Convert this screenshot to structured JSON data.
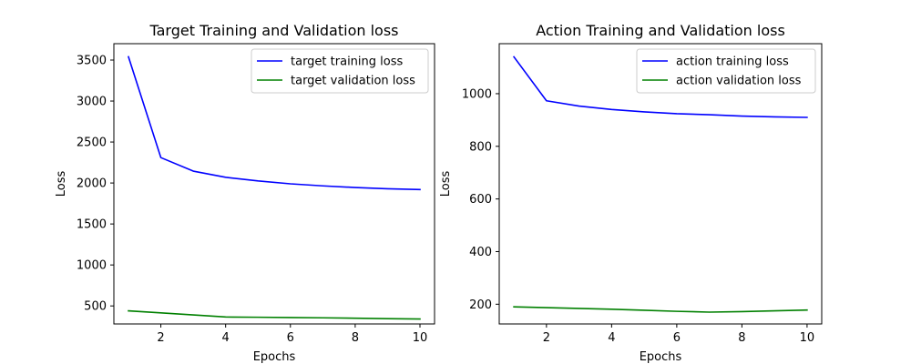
{
  "chart_data": [
    {
      "type": "line",
      "title": "Target Training and Validation loss",
      "xlabel": "Epochs",
      "ylabel": "Loss",
      "xlim": [
        0.55,
        10.45
      ],
      "ylim": [
        280,
        3700
      ],
      "xticks": [
        2,
        4,
        6,
        8,
        10
      ],
      "xtick_labels": [
        "2",
        "4",
        "6",
        "8",
        "10"
      ],
      "yticks": [
        500,
        1000,
        1500,
        2000,
        2500,
        3000,
        3500
      ],
      "ytick_labels": [
        "500",
        "1000",
        "1500",
        "2000",
        "2500",
        "3000",
        "3500"
      ],
      "grid": false,
      "legend_position": "top-right",
      "x": [
        1,
        2,
        3,
        4,
        5,
        6,
        7,
        8,
        9,
        10
      ],
      "series": [
        {
          "name": "target training loss",
          "color": "#0000ff",
          "values": [
            3540,
            2310,
            2145,
            2070,
            2025,
            1990,
            1965,
            1945,
            1930,
            1920
          ]
        },
        {
          "name": "target validation loss",
          "color": "#008000",
          "values": [
            440,
            415,
            390,
            365,
            362,
            358,
            355,
            350,
            345,
            340
          ]
        }
      ]
    },
    {
      "type": "line",
      "title": "Action Training and Validation loss",
      "xlabel": "Epochs",
      "ylabel": "Loss",
      "xlim": [
        0.55,
        10.45
      ],
      "ylim": [
        125,
        1190
      ],
      "xticks": [
        2,
        4,
        6,
        8,
        10
      ],
      "xtick_labels": [
        "2",
        "4",
        "6",
        "8",
        "10"
      ],
      "yticks": [
        200,
        400,
        600,
        800,
        1000
      ],
      "ytick_labels": [
        "200",
        "400",
        "600",
        "800",
        "1000"
      ],
      "grid": false,
      "legend_position": "top-right",
      "x": [
        1,
        2,
        3,
        4,
        5,
        6,
        7,
        8,
        9,
        10
      ],
      "series": [
        {
          "name": "action training loss",
          "color": "#0000ff",
          "values": [
            1140,
            973,
            953,
            940,
            931,
            924,
            920,
            915,
            912,
            910
          ]
        },
        {
          "name": "action validation loss",
          "color": "#008000",
          "values": [
            190,
            187,
            184,
            181,
            177,
            173,
            170,
            172,
            175,
            178
          ]
        }
      ]
    }
  ]
}
